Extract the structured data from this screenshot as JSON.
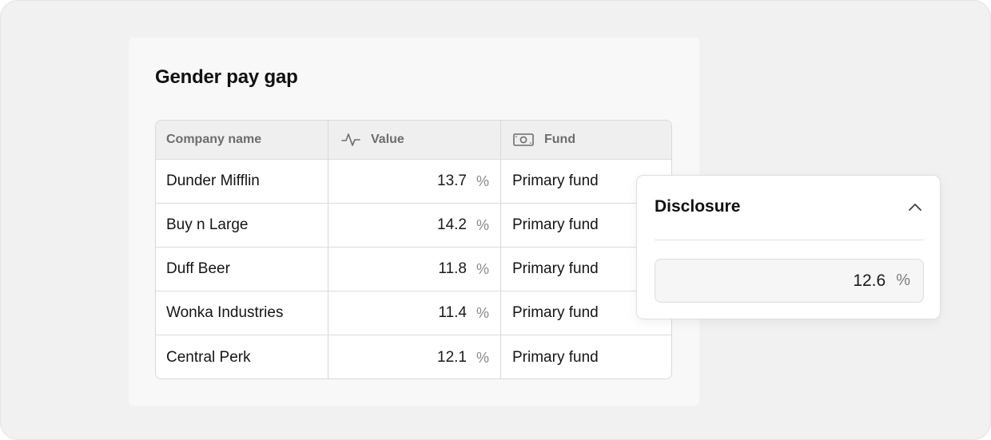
{
  "card": {
    "title": "Gender pay gap"
  },
  "table": {
    "columns": [
      {
        "label": "Company name",
        "icon": ""
      },
      {
        "label": "Value",
        "icon": "activity-pulse-icon"
      },
      {
        "label": "Fund",
        "icon": "banknote-icon"
      }
    ],
    "rows": [
      {
        "company": "Dunder Mifflin",
        "value": "13.7",
        "unit": "%",
        "fund": "Primary fund"
      },
      {
        "company": "Buy n Large",
        "value": "14.2",
        "unit": "%",
        "fund": "Primary fund"
      },
      {
        "company": "Duff Beer",
        "value": "11.8",
        "unit": "%",
        "fund": "Primary fund"
      },
      {
        "company": "Wonka Industries",
        "value": "11.4",
        "unit": "%",
        "fund": "Primary fund"
      },
      {
        "company": "Central Perk",
        "value": "12.1",
        "unit": "%",
        "fund": "Primary fund"
      }
    ]
  },
  "popover": {
    "title": "Disclosure",
    "toggle_icon": "chevron-up-icon",
    "input": {
      "value": "12.6",
      "unit": "%"
    }
  }
}
